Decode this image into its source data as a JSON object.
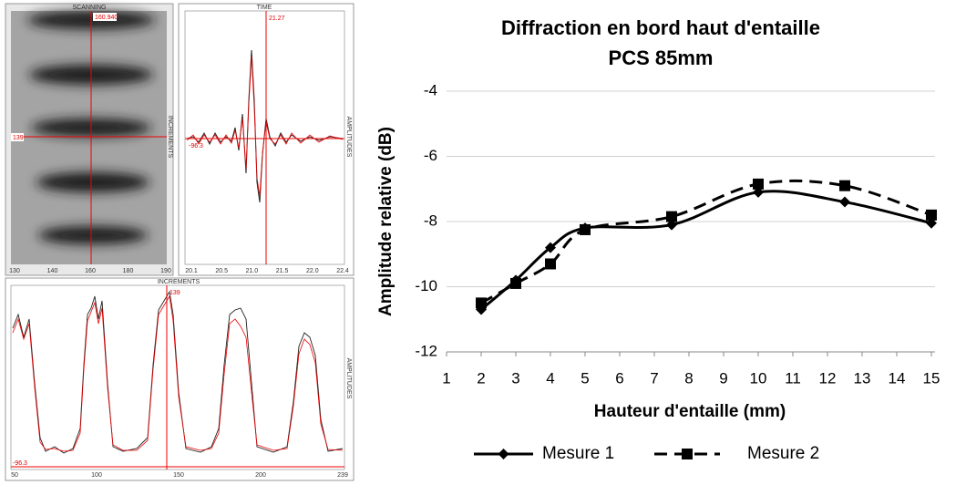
{
  "panels": {
    "scanning": {
      "title": "SCANNING",
      "side_label": "INCREMENTS",
      "cursor_x_label": "160.940",
      "cursor_y_label": "139",
      "xticks": [
        "130",
        "140",
        "160",
        "180",
        "190"
      ]
    },
    "time": {
      "title": "TIME",
      "side_label": "AMPLITUDES",
      "cursor_x_label": "21.27",
      "cursor_y_label": "-96.3",
      "xticks": [
        "20.1",
        "20.5",
        "21.0",
        "21.5",
        "22.0",
        "22.4"
      ]
    },
    "increments": {
      "title": "INCREMENTS",
      "side_label": "AMPLITUDES",
      "cursor_x_label": "139",
      "cursor_y_label": "-96.3",
      "xticks": [
        "50",
        "100",
        "150",
        "200",
        "239"
      ]
    }
  },
  "chart_data": {
    "type": "line",
    "title": "Diffraction en bord haut d'entaille",
    "subtitle": "PCS 85mm",
    "x_label": "Hauteur d'entaille (mm)",
    "y_label": "Amplitude relative (dB)",
    "x": [
      2,
      3,
      4,
      5,
      7.5,
      10,
      12.5,
      15
    ],
    "series": [
      {
        "name": "Mesure 1",
        "color": "#000000",
        "dash": "solid",
        "marker": "diamond",
        "values": [
          -10.7,
          -9.8,
          -8.8,
          -8.2,
          -8.1,
          -7.1,
          -7.4,
          -8.05
        ]
      },
      {
        "name": "Mesure 2",
        "color": "#000000",
        "dash": "dashed",
        "marker": "square",
        "values": [
          -10.5,
          -9.9,
          -9.3,
          -8.25,
          -7.85,
          -6.85,
          -6.9,
          -7.8
        ]
      }
    ],
    "xlim": [
      1,
      15
    ],
    "xticks": [
      1,
      2,
      3,
      4,
      5,
      6,
      7,
      8,
      9,
      10,
      11,
      12,
      13,
      14,
      15
    ],
    "ylim": [
      -12,
      -4
    ],
    "yticks": [
      -12,
      -10,
      -8,
      -6,
      -4
    ],
    "grid": true,
    "legend": "bottom"
  }
}
